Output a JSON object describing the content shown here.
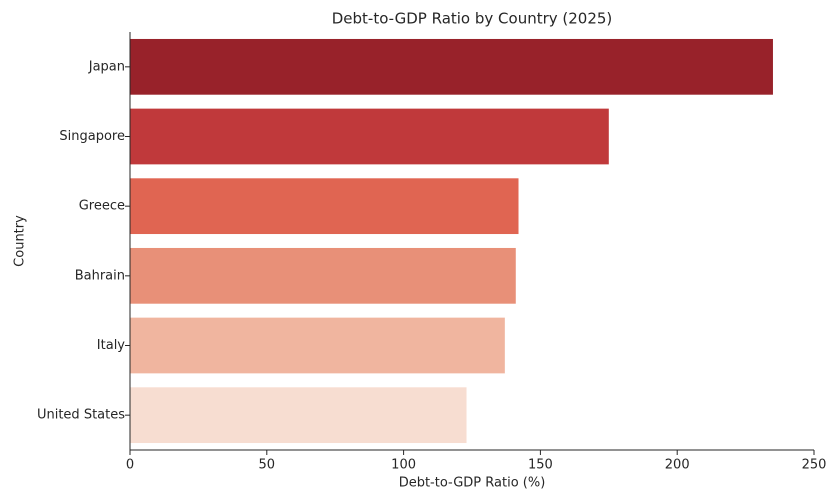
{
  "chart_data": {
    "type": "barh",
    "title": "Debt-to-GDP Ratio by Country (2025)",
    "x_label": "Debt-to-GDP Ratio (%)",
    "y_label": "Country",
    "categories": [
      "Japan",
      "Singapore",
      "Greece",
      "Bahrain",
      "Italy",
      "United States"
    ],
    "values": [
      235,
      175,
      142,
      141,
      137,
      123
    ],
    "colors": [
      "#98222a",
      "#c0393b",
      "#e06552",
      "#e89078",
      "#f0b59f",
      "#f7ddd1"
    ],
    "xlim": [
      0,
      250
    ],
    "xticks": [
      0,
      50,
      100,
      150,
      200,
      250
    ],
    "grid": false
  }
}
